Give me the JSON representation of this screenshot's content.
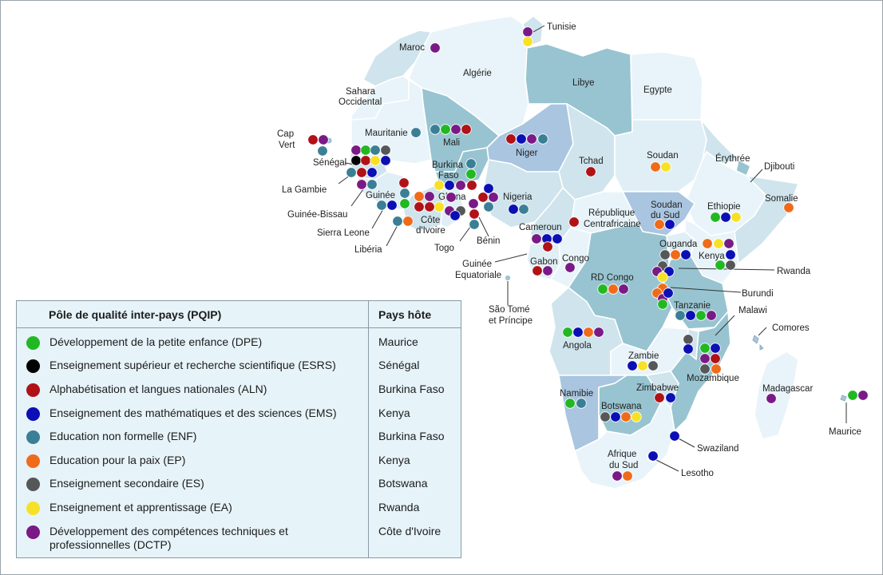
{
  "legend": {
    "header_pole": "Pôle de qualité inter-pays (PQIP)",
    "header_host": "Pays hôte",
    "rows": [
      {
        "key": "dpe",
        "color": "#22b822",
        "pole": "Développement de la petite enfance (DPE)",
        "host": "Maurice"
      },
      {
        "key": "esrs",
        "color": "#000000",
        "pole": "Enseignement supérieur et recherche scientifique (ESRS)",
        "host": "Sénégal"
      },
      {
        "key": "aln",
        "color": "#b01217",
        "pole": "Alphabétisation et langues nationales (ALN)",
        "host": "Burkina Faso"
      },
      {
        "key": "ems",
        "color": "#0b0fb5",
        "pole": "Enseignement des mathématiques et des sciences (EMS)",
        "host": "Kenya"
      },
      {
        "key": "enf",
        "color": "#3a7f95",
        "pole": "Education non formelle (ENF)",
        "host": "Burkina Faso"
      },
      {
        "key": "ep",
        "color": "#ef6b1a",
        "pole": "Education pour la paix (EP)",
        "host": "Kenya"
      },
      {
        "key": "es",
        "color": "#555758",
        "pole": "Enseignement secondaire (ES)",
        "host": "Botswana"
      },
      {
        "key": "ea",
        "color": "#f7e126",
        "pole": "Enseignement et apprentissage (EA)",
        "host": "Rwanda"
      },
      {
        "key": "dctp",
        "color": "#7a1a86",
        "pole": "Développement des compétences techniques et professionnelles (DCTP)",
        "host": "Côte d'Ivoire"
      }
    ]
  },
  "countries": {
    "tunisie": "Tunisie",
    "maroc": "Maroc",
    "algerie": "Algérie",
    "libye": "Libye",
    "egypte": "Egypte",
    "sahara_occ_1": "Sahara",
    "sahara_occ_2": "Occidental",
    "cap_vert_1": "Cap",
    "cap_vert_2": "Vert",
    "mauritanie": "Mauritanie",
    "mali": "Mali",
    "niger": "Niger",
    "tchad": "Tchad",
    "soudan": "Soudan",
    "erythree": "Érythrée",
    "djibouti": "Djibouti",
    "senegal": "Sénégal",
    "gambie": "La Gambie",
    "guinee_bissau": "Guinée-Bissau",
    "guinee": "Guinée",
    "sierra_leone": "Sierra Leone",
    "liberia": "Libéria",
    "burkina_1": "Burkina",
    "burkina_2": "Faso",
    "ghana": "Ghana",
    "cote_ivoire_1": "Côte",
    "cote_ivoire_2": "d'Ivoire",
    "togo": "Togo",
    "benin": "Bénin",
    "nigeria": "Nigeria",
    "rca_1": "République",
    "rca_2": "Centrafricaine",
    "soudan_sud_1": "Soudan",
    "soudan_sud_2": "du Sud",
    "ethiopie": "Ethiopie",
    "somalie": "Somalie",
    "cameroun": "Cameroun",
    "guinee_eq_1": "Guinée",
    "guinee_eq_2": "Equatoriale",
    "gabon": "Gabon",
    "congo": "Congo",
    "sao_tome_1": "São Tomé",
    "sao_tome_2": "et Príncipe",
    "ouganda": "Ouganda",
    "kenya": "Kenya",
    "rwanda": "Rwanda",
    "rd_congo": "RD Congo",
    "burundi": "Burundi",
    "tanzanie": "Tanzanie",
    "malawi": "Malawi",
    "comores": "Comores",
    "angola": "Angola",
    "zambie": "Zambie",
    "mozambique": "Mozambique",
    "madagascar": "Madagascar",
    "maurice": "Maurice",
    "namibie": "Namibie",
    "zimbabwe": "Zimbabwe",
    "botswana": "Botswana",
    "swaziland": "Swaziland",
    "afrique_sud_1": "Afrique",
    "afrique_sud_2": "du Sud",
    "lesotho": "Lesotho"
  },
  "memberships": {
    "tunisie": [
      "dctp",
      "ea"
    ],
    "maroc": [
      "dctp"
    ],
    "cap_vert": [
      "aln",
      "dctp",
      "enf"
    ],
    "mauritanie": [
      "enf"
    ],
    "mali": [
      "enf",
      "dpe",
      "dctp",
      "aln"
    ],
    "niger": [
      "aln",
      "ems",
      "dctp",
      "enf"
    ],
    "tchad": [
      "aln"
    ],
    "soudan": [
      "ep",
      "ea"
    ],
    "senegal": [
      "dctp",
      "dpe",
      "enf",
      "es",
      "esrs",
      "aln",
      "ea",
      "ems"
    ],
    "gambie": [
      "enf",
      "aln",
      "ems"
    ],
    "guinee_bissau": [
      "dctp",
      "enf"
    ],
    "guinee": [
      "aln",
      "enf",
      "enf",
      "ems",
      "dpe"
    ],
    "sierra_leone": [
      "enf",
      "ep"
    ],
    "burkina_faso": [
      "enf",
      "dpe",
      "ems",
      "dctp",
      "aln",
      "ems"
    ],
    "ghana": [
      "ep",
      "dctp",
      "ea",
      "ea",
      "dctp",
      "es"
    ],
    "cote_ivoire": [
      "aln",
      "aln",
      "dctp",
      "dctp"
    ],
    "togo": [
      "aln",
      "enf"
    ],
    "benin": [
      "aln",
      "dctp",
      "ems",
      "enf"
    ],
    "nigeria": [
      "ems",
      "enf"
    ],
    "rca": [
      "aln"
    ],
    "cameroun": [
      "dctp",
      "ems",
      "ems",
      "aln"
    ],
    "gabon": [
      "aln",
      "dctp"
    ],
    "congo": [
      "dctp"
    ],
    "soudan_sud": [
      "ep",
      "ems"
    ],
    "ethiopie": [
      "dpe",
      "ems",
      "ea"
    ],
    "somalie": [
      "ep"
    ],
    "ouganda": [
      "ep",
      "ea",
      "dctp",
      "es",
      "ep",
      "ems"
    ],
    "kenya": [
      "ems",
      "dpe",
      "es"
    ],
    "rwanda": [
      "es",
      "ems",
      "dctp",
      "ea",
      "ep"
    ],
    "burundi": [
      "ep",
      "dctp",
      "ems",
      "dpe"
    ],
    "rd_congo": [
      "dpe",
      "ep",
      "dctp"
    ],
    "tanzanie": [
      "enf",
      "ems",
      "dpe",
      "dctp"
    ],
    "malawi": [
      "es",
      "ems"
    ],
    "angola": [
      "dpe",
      "ems",
      "ep",
      "dctp"
    ],
    "zambie": [
      "ems",
      "ea",
      "es"
    ],
    "mozambique": [
      "dpe",
      "ems",
      "dctp",
      "aln",
      "es",
      "ep"
    ],
    "madagascar": [
      "dctp"
    ],
    "maurice": [
      "dpe",
      "dctp"
    ],
    "namibie": [
      "dpe",
      "enf"
    ],
    "zimbabwe": [
      "aln",
      "ems"
    ],
    "botswana": [
      "es",
      "ems",
      "ep",
      "ea"
    ],
    "swaziland": [
      "ems"
    ],
    "lesotho": [
      "ems"
    ],
    "afrique_sud": [
      "dctp",
      "ep"
    ]
  }
}
